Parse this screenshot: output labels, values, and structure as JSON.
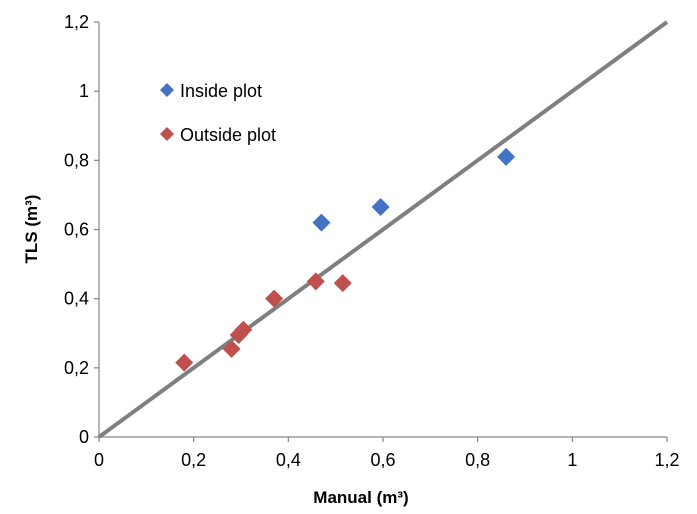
{
  "chart_data": {
    "type": "scatter",
    "title": "",
    "xlabel": "Manual (m³)",
    "ylabel": "TLS (m³)",
    "xlim": [
      0,
      1.2
    ],
    "ylim": [
      0,
      1.2
    ],
    "x_ticks": [
      "0",
      "0,2",
      "0,4",
      "0,6",
      "0,8",
      "1",
      "1,2"
    ],
    "y_ticks": [
      "0",
      "0,2",
      "0,4",
      "0,6",
      "0,8",
      "1",
      "1,2"
    ],
    "grid": false,
    "legend_position": "top-left",
    "reference_line": {
      "x": [
        0,
        1.2
      ],
      "y": [
        0,
        1.2
      ],
      "color": "#7f7f7f"
    },
    "series": [
      {
        "name": "Inside plot",
        "color": "#4472c4",
        "marker": "diamond",
        "points": [
          {
            "x": 0.47,
            "y": 0.62
          },
          {
            "x": 0.595,
            "y": 0.665
          },
          {
            "x": 0.86,
            "y": 0.81
          }
        ]
      },
      {
        "name": "Outside plot",
        "color": "#c0504d",
        "marker": "diamond",
        "points": [
          {
            "x": 0.18,
            "y": 0.215
          },
          {
            "x": 0.28,
            "y": 0.255
          },
          {
            "x": 0.295,
            "y": 0.295
          },
          {
            "x": 0.305,
            "y": 0.31
          },
          {
            "x": 0.37,
            "y": 0.4
          },
          {
            "x": 0.458,
            "y": 0.45
          },
          {
            "x": 0.515,
            "y": 0.445
          }
        ]
      }
    ]
  }
}
